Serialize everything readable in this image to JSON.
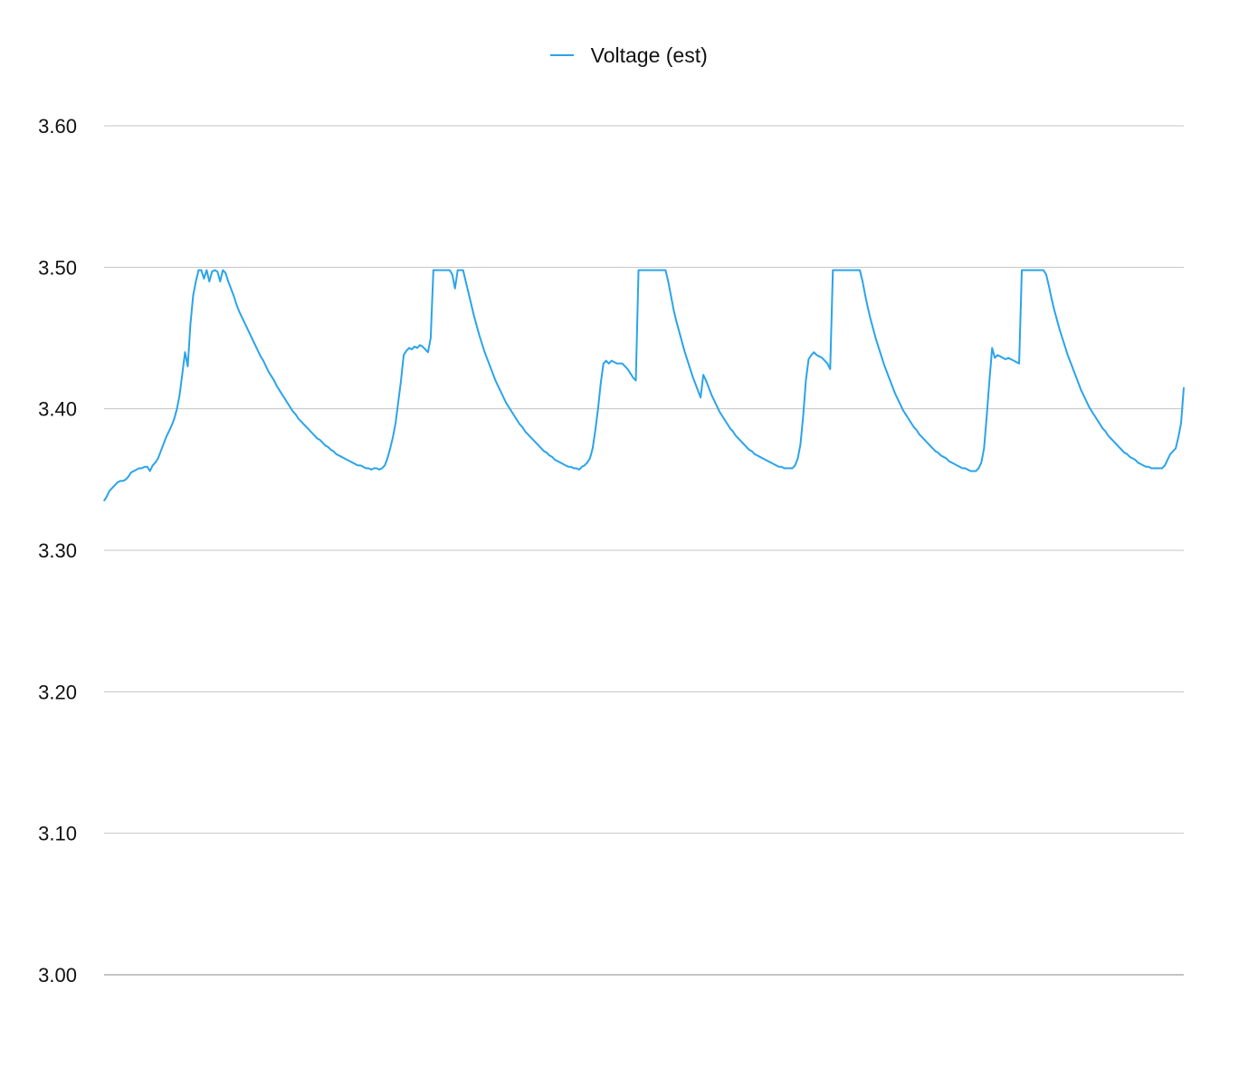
{
  "chart_data": {
    "type": "line",
    "title": "",
    "xlabel": "",
    "ylabel": "",
    "ylim": [
      3.0,
      3.6
    ],
    "yticks": [
      "3.00",
      "3.10",
      "3.20",
      "3.30",
      "3.40",
      "3.50",
      "3.60"
    ],
    "grid": true,
    "legend_position": "top-center",
    "colors": {
      "line": "#2aa4ea",
      "grid": "#c4c4c4",
      "baseline": "#8a8a8a"
    },
    "series": [
      {
        "name": "Voltage (est)",
        "values": [
          3.335,
          3.338,
          3.342,
          3.344,
          3.346,
          3.348,
          3.349,
          3.349,
          3.35,
          3.352,
          3.355,
          3.356,
          3.357,
          3.358,
          3.358,
          3.359,
          3.359,
          3.356,
          3.36,
          3.362,
          3.365,
          3.37,
          3.375,
          3.38,
          3.384,
          3.388,
          3.393,
          3.4,
          3.41,
          3.425,
          3.44,
          3.43,
          3.46,
          3.48,
          3.49,
          3.498,
          3.498,
          3.492,
          3.498,
          3.49,
          3.497,
          3.498,
          3.497,
          3.49,
          3.498,
          3.496,
          3.49,
          3.485,
          3.48,
          3.474,
          3.469,
          3.465,
          3.461,
          3.457,
          3.453,
          3.449,
          3.445,
          3.441,
          3.437,
          3.434,
          3.43,
          3.426,
          3.423,
          3.42,
          3.416,
          3.413,
          3.41,
          3.407,
          3.404,
          3.401,
          3.398,
          3.396,
          3.393,
          3.391,
          3.389,
          3.387,
          3.385,
          3.383,
          3.381,
          3.379,
          3.378,
          3.376,
          3.374,
          3.373,
          3.371,
          3.37,
          3.368,
          3.367,
          3.366,
          3.365,
          3.364,
          3.363,
          3.362,
          3.361,
          3.36,
          3.36,
          3.359,
          3.358,
          3.358,
          3.357,
          3.358,
          3.358,
          3.357,
          3.358,
          3.36,
          3.365,
          3.372,
          3.38,
          3.39,
          3.405,
          3.42,
          3.438,
          3.441,
          3.443,
          3.442,
          3.444,
          3.443,
          3.445,
          3.444,
          3.442,
          3.44,
          3.45,
          3.498,
          3.498,
          3.498,
          3.498,
          3.498,
          3.498,
          3.498,
          3.495,
          3.485,
          3.498,
          3.498,
          3.498,
          3.49,
          3.482,
          3.474,
          3.466,
          3.459,
          3.452,
          3.446,
          3.44,
          3.435,
          3.43,
          3.425,
          3.42,
          3.416,
          3.412,
          3.408,
          3.404,
          3.401,
          3.398,
          3.395,
          3.392,
          3.389,
          3.387,
          3.384,
          3.382,
          3.38,
          3.378,
          3.376,
          3.374,
          3.372,
          3.37,
          3.369,
          3.367,
          3.366,
          3.364,
          3.363,
          3.362,
          3.361,
          3.36,
          3.359,
          3.359,
          3.358,
          3.358,
          3.357,
          3.359,
          3.36,
          3.362,
          3.365,
          3.372,
          3.385,
          3.4,
          3.418,
          3.432,
          3.434,
          3.432,
          3.434,
          3.433,
          3.432,
          3.432,
          3.432,
          3.43,
          3.428,
          3.425,
          3.422,
          3.42,
          3.498,
          3.498,
          3.498,
          3.498,
          3.498,
          3.498,
          3.498,
          3.498,
          3.498,
          3.498,
          3.498,
          3.49,
          3.48,
          3.47,
          3.462,
          3.455,
          3.448,
          3.441,
          3.435,
          3.429,
          3.423,
          3.418,
          3.413,
          3.408,
          3.424,
          3.42,
          3.415,
          3.41,
          3.406,
          3.402,
          3.398,
          3.395,
          3.392,
          3.389,
          3.386,
          3.384,
          3.381,
          3.379,
          3.377,
          3.375,
          3.373,
          3.371,
          3.37,
          3.368,
          3.367,
          3.366,
          3.365,
          3.364,
          3.363,
          3.362,
          3.361,
          3.36,
          3.359,
          3.359,
          3.358,
          3.358,
          3.358,
          3.358,
          3.36,
          3.365,
          3.375,
          3.395,
          3.42,
          3.435,
          3.438,
          3.44,
          3.438,
          3.437,
          3.436,
          3.434,
          3.432,
          3.428,
          3.498,
          3.498,
          3.498,
          3.498,
          3.498,
          3.498,
          3.498,
          3.498,
          3.498,
          3.498,
          3.498,
          3.49,
          3.48,
          3.471,
          3.463,
          3.456,
          3.449,
          3.443,
          3.437,
          3.431,
          3.426,
          3.421,
          3.416,
          3.411,
          3.407,
          3.403,
          3.399,
          3.396,
          3.393,
          3.39,
          3.387,
          3.385,
          3.382,
          3.38,
          3.378,
          3.376,
          3.374,
          3.372,
          3.37,
          3.369,
          3.367,
          3.366,
          3.365,
          3.363,
          3.362,
          3.361,
          3.36,
          3.359,
          3.358,
          3.358,
          3.357,
          3.356,
          3.356,
          3.356,
          3.358,
          3.362,
          3.372,
          3.395,
          3.42,
          3.443,
          3.436,
          3.438,
          3.437,
          3.436,
          3.435,
          3.436,
          3.435,
          3.434,
          3.433,
          3.432,
          3.498,
          3.498,
          3.498,
          3.498,
          3.498,
          3.498,
          3.498,
          3.498,
          3.498,
          3.495,
          3.487,
          3.478,
          3.47,
          3.463,
          3.456,
          3.45,
          3.444,
          3.438,
          3.433,
          3.428,
          3.423,
          3.418,
          3.413,
          3.409,
          3.405,
          3.401,
          3.398,
          3.395,
          3.392,
          3.389,
          3.386,
          3.384,
          3.381,
          3.379,
          3.377,
          3.375,
          3.373,
          3.371,
          3.369,
          3.368,
          3.366,
          3.365,
          3.364,
          3.362,
          3.361,
          3.36,
          3.359,
          3.359,
          3.358,
          3.358,
          3.358,
          3.358,
          3.358,
          3.36,
          3.364,
          3.368,
          3.37,
          3.372,
          3.38,
          3.39,
          3.415
        ]
      }
    ]
  }
}
